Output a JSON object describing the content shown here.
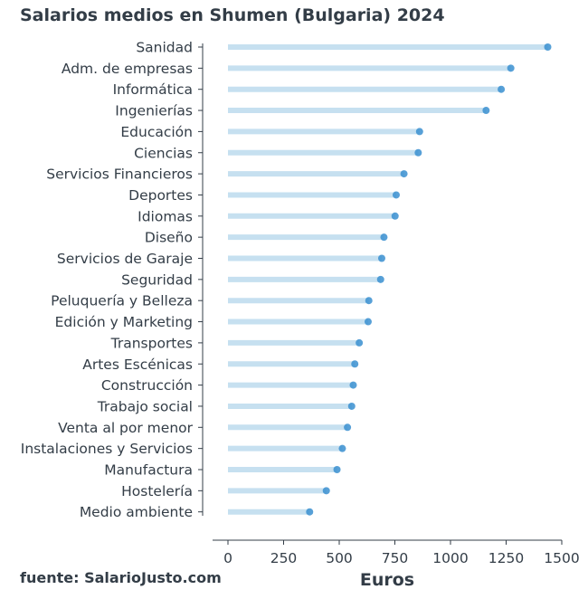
{
  "title": "Salarios medios en Shumen (Bulgaria) 2024",
  "source": "fuente: SalarioJusto.com",
  "colors": {
    "bar": "#c6e0f0",
    "dot": "#3a8fd0",
    "text": "#333d47",
    "axis": "#333d47"
  },
  "chart_data": {
    "type": "bar",
    "orientation": "horizontal",
    "style": "lollipop",
    "title": "Salarios medios en Shumen (Bulgaria) 2024",
    "xlabel": "Euros",
    "ylabel": "",
    "xlim": [
      -70,
      1510
    ],
    "xticks": [
      0,
      250,
      500,
      750,
      1000,
      1250,
      1500
    ],
    "grid": false,
    "legend": "none",
    "categories": [
      "Sanidad",
      "Adm. de empresas",
      "Informática",
      "Ingenierías",
      "Educación",
      "Ciencias",
      "Servicios Financieros",
      "Deportes",
      "Idiomas",
      "Diseño",
      "Servicios de Garaje",
      "Seguridad",
      "Peluquería y Belleza",
      "Edición y Marketing",
      "Transportes",
      "Artes Escénicas",
      "Construcción",
      "Trabajo social",
      "Venta al por menor",
      "Instalaciones y Servicios",
      "Manufactura",
      "Hostelería",
      "Medio ambiente"
    ],
    "values": [
      1437,
      1271,
      1228,
      1160,
      861,
      855,
      791,
      756,
      751,
      701,
      691,
      686,
      633,
      630,
      590,
      570,
      563,
      556,
      537,
      514,
      490,
      442,
      367
    ]
  }
}
